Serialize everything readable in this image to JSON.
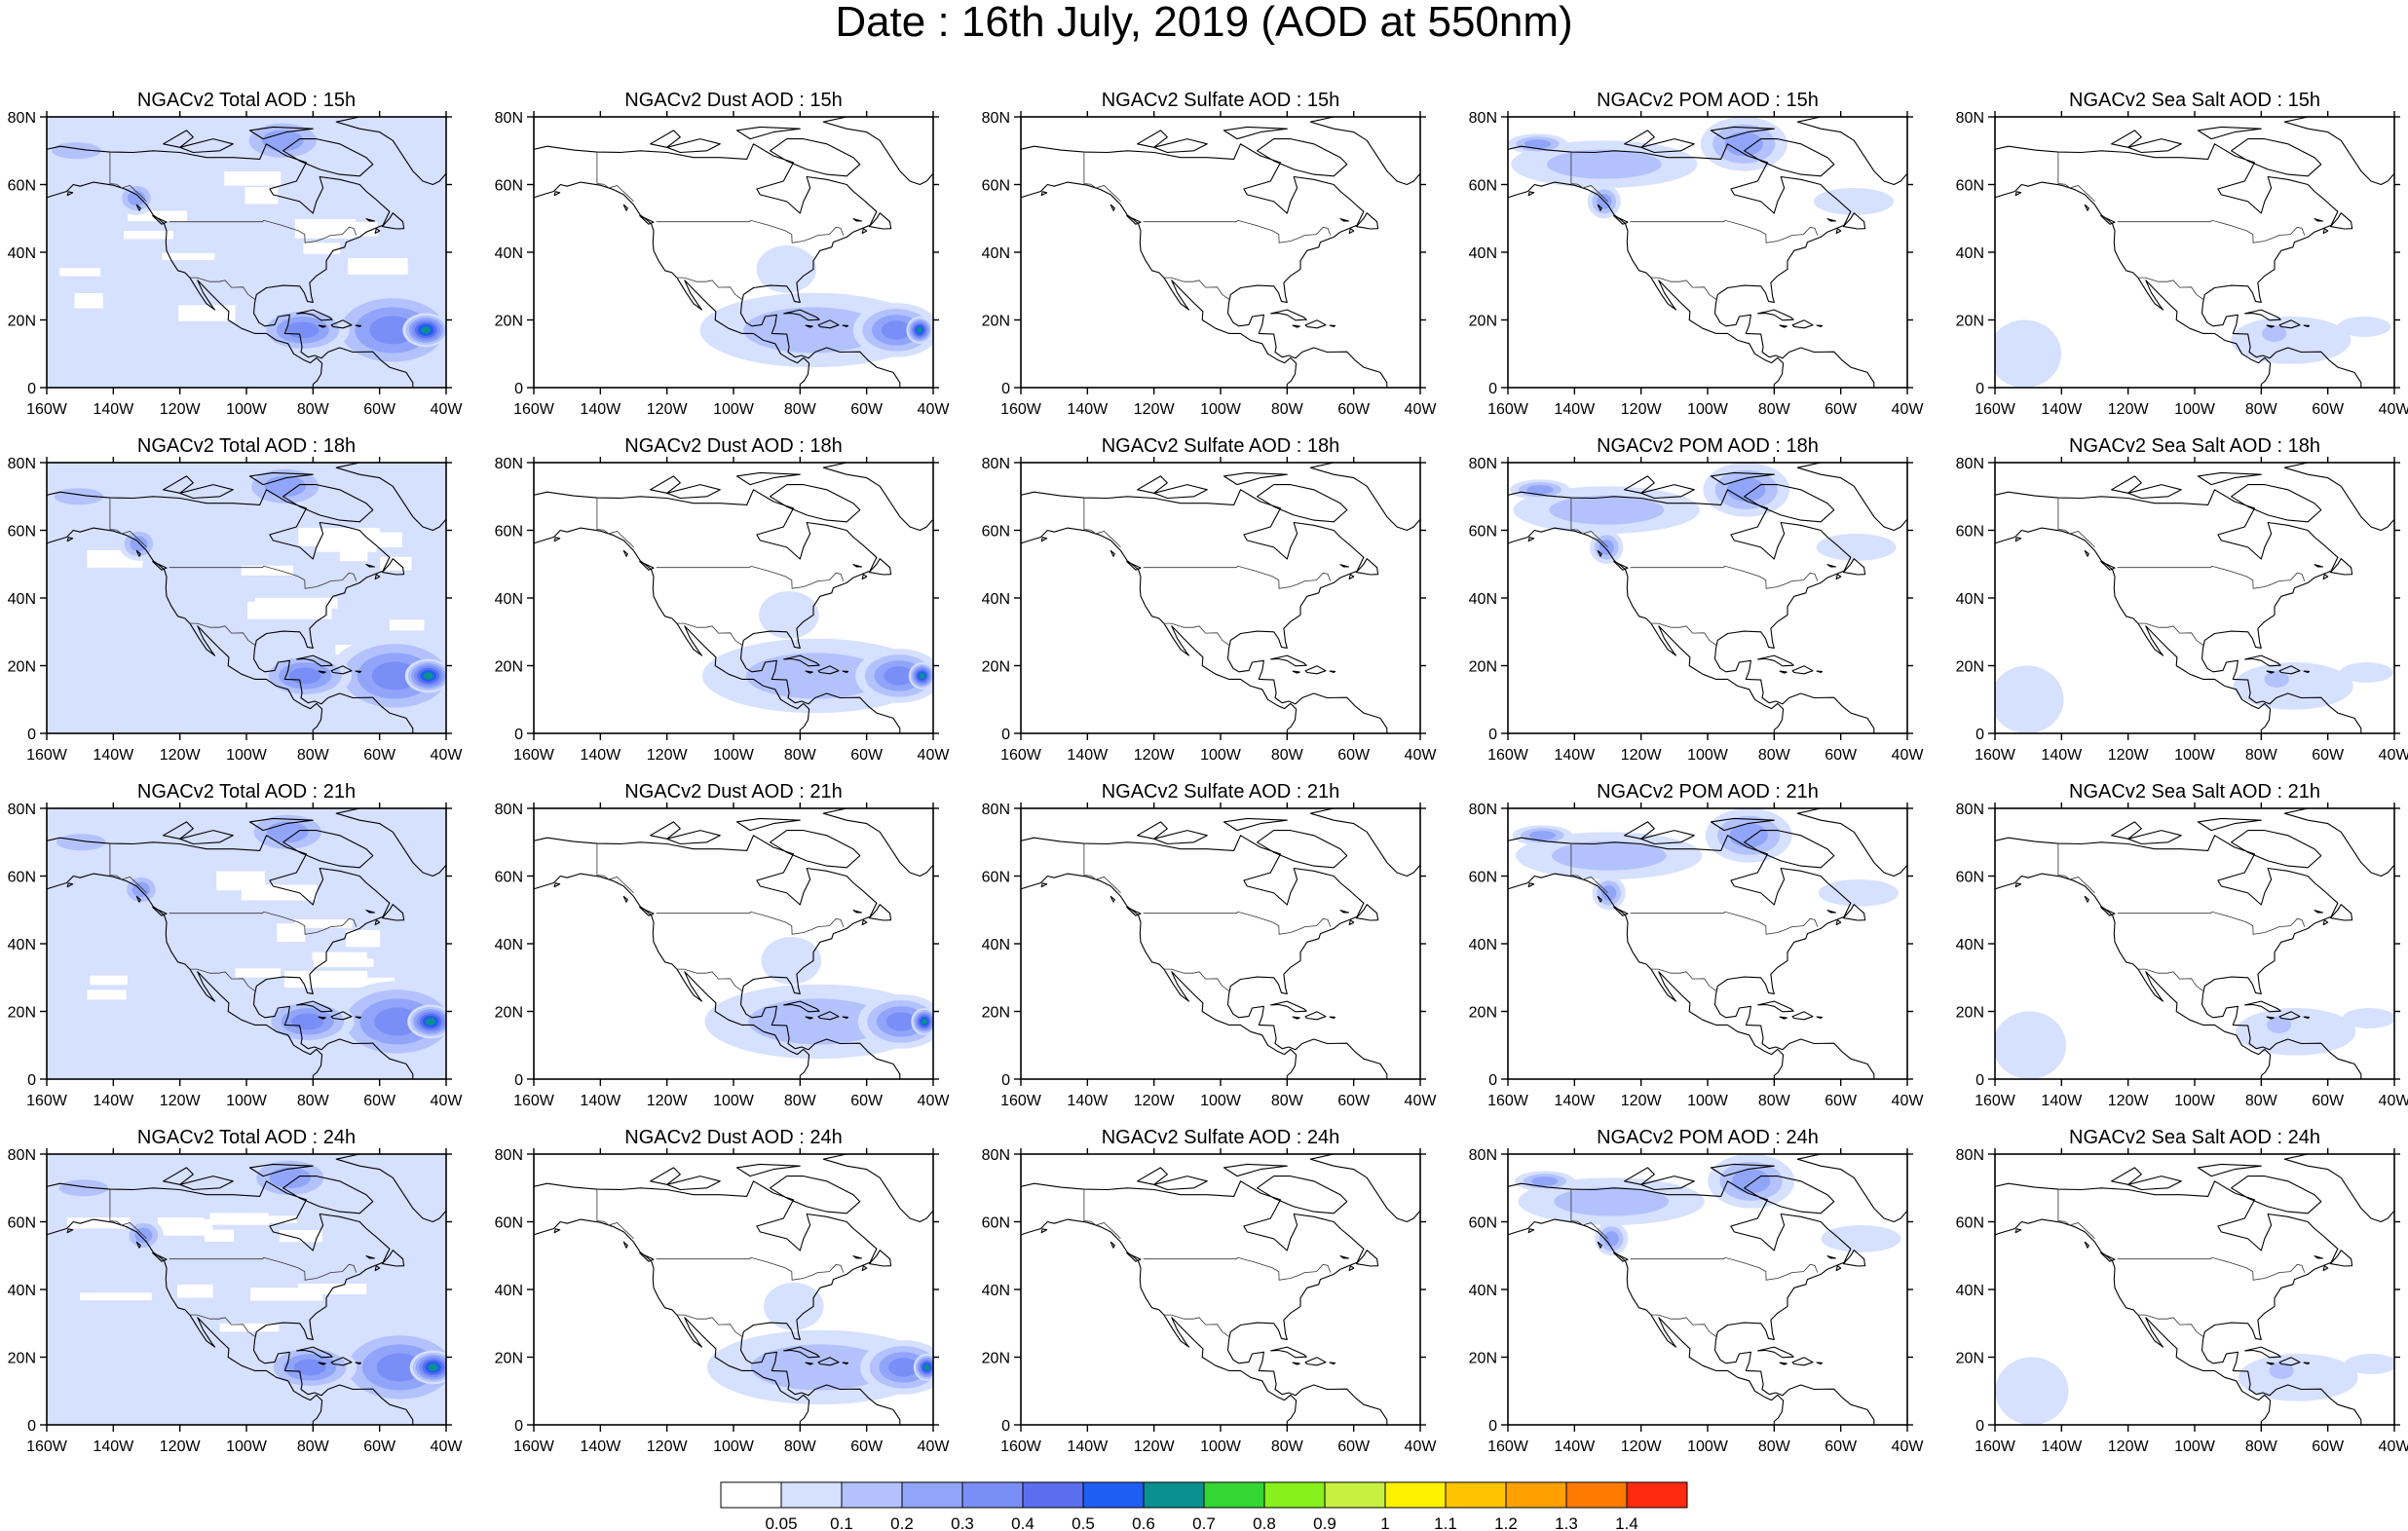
{
  "title": "Date : 16th July, 2019 (AOD at 550nm)",
  "rows": [
    [
      "NGACv2 Total AOD : 15h",
      "NGACv2 Dust AOD : 15h",
      "NGACv2 Sulfate AOD : 15h",
      "NGACv2 POM AOD : 15h",
      "NGACv2 Sea Salt AOD : 15h"
    ],
    [
      "NGACv2 Total AOD : 18h",
      "NGACv2 Dust AOD : 18h",
      "NGACv2 Sulfate AOD : 18h",
      "NGACv2 POM AOD : 18h",
      "NGACv2 Sea Salt AOD : 18h"
    ],
    [
      "NGACv2 Total AOD : 21h",
      "NGACv2 Dust AOD : 21h",
      "NGACv2 Sulfate AOD : 21h",
      "NGACv2 POM AOD : 21h",
      "NGACv2 Sea Salt AOD : 21h"
    ],
    [
      "NGACv2 Total AOD : 24h",
      "NGACv2 Dust AOD : 24h",
      "NGACv2 Sulfate AOD : 24h",
      "NGACv2 POM AOD : 24h",
      "NGACv2 Sea Salt  AOD : 24h"
    ]
  ],
  "map_extent": {
    "lon": [
      -160,
      -40
    ],
    "lat": [
      0,
      80
    ]
  },
  "lon_ticks": [
    {
      "value": -160,
      "label": "160W"
    },
    {
      "value": -140,
      "label": "140W"
    },
    {
      "value": -120,
      "label": "120W"
    },
    {
      "value": -100,
      "label": "100W"
    },
    {
      "value": -80,
      "label": "80W"
    },
    {
      "value": -60,
      "label": "60W"
    },
    {
      "value": -40,
      "label": "40W"
    }
  ],
  "lat_ticks": [
    {
      "value": 0,
      "label": "0"
    },
    {
      "value": 20,
      "label": "20N"
    },
    {
      "value": 40,
      "label": "40N"
    },
    {
      "value": 60,
      "label": "60N"
    },
    {
      "value": 80,
      "label": "80N"
    }
  ],
  "colorbar": {
    "colors": [
      "#ffffff",
      "#d6e0ff",
      "#b3c2fc",
      "#90a5fa",
      "#7a8ef8",
      "#5c6ef0",
      "#1f5ef2",
      "#0a9090",
      "#33d633",
      "#88f01a",
      "#c8f040",
      "#fff200",
      "#ffc400",
      "#ffa000",
      "#ff7a00",
      "#ff2a10"
    ],
    "labels": [
      "0.05",
      "0.1",
      "0.2",
      "0.3",
      "0.4",
      "0.5",
      "0.6",
      "0.7",
      "0.8",
      "0.9",
      "1",
      "1.1",
      "1.2",
      "1.3",
      "1.4"
    ]
  },
  "aod_patterns": [
    {
      "species": "Total",
      "background_level": 1,
      "blobs": [
        {
          "lon": -55,
          "lat": 17,
          "rlon": 20,
          "rlat": 12,
          "level": 4
        },
        {
          "lon": -45,
          "lat": 17,
          "rlon": 7,
          "rlat": 5,
          "level": 7
        },
        {
          "lon": -82,
          "lat": 17,
          "rlon": 14,
          "rlat": 7,
          "level": 4
        },
        {
          "lon": -88,
          "lat": 73,
          "rlon": 14,
          "rlat": 7,
          "level": 3
        },
        {
          "lon": -132,
          "lat": 56,
          "rlon": 6,
          "rlat": 5,
          "level": 3
        },
        {
          "lon": -150,
          "lat": 70,
          "rlon": 12,
          "rlat": 4,
          "level": 2
        }
      ]
    },
    {
      "species": "Dust",
      "background_level": 0,
      "blobs": [
        {
          "lon": -75,
          "lat": 17,
          "rlon": 34,
          "rlat": 11,
          "level": 2
        },
        {
          "lon": -50,
          "lat": 17,
          "rlon": 13,
          "rlat": 8,
          "level": 4
        },
        {
          "lon": -43,
          "lat": 17,
          "rlon": 4,
          "rlat": 4,
          "level": 7
        },
        {
          "lon": -83,
          "lat": 35,
          "rlon": 9,
          "rlat": 7,
          "level": 1
        }
      ]
    },
    {
      "species": "Sulfate",
      "background_level": 0,
      "blobs": []
    },
    {
      "species": "POM",
      "background_level": 0,
      "blobs": [
        {
          "lon": -130,
          "lat": 66,
          "rlon": 28,
          "rlat": 7,
          "level": 2
        },
        {
          "lon": -150,
          "lat": 72,
          "rlon": 9,
          "rlat": 3,
          "level": 3
        },
        {
          "lon": -88,
          "lat": 72,
          "rlon": 13,
          "rlat": 8,
          "level": 3
        },
        {
          "lon": -130,
          "lat": 55,
          "rlon": 5,
          "rlat": 5,
          "level": 3
        },
        {
          "lon": -55,
          "lat": 55,
          "rlon": 12,
          "rlat": 4,
          "level": 1
        }
      ]
    },
    {
      "species": "Sea Salt",
      "background_level": 0,
      "blobs": [
        {
          "lon": -150,
          "lat": 10,
          "rlon": 11,
          "rlat": 10,
          "level": 1
        },
        {
          "lon": -70,
          "lat": 14,
          "rlon": 18,
          "rlat": 7,
          "level": 1
        },
        {
          "lon": -75,
          "lat": 16,
          "rlon": 6,
          "rlat": 4,
          "level": 2
        },
        {
          "lon": -48,
          "lat": 18,
          "rlon": 8,
          "rlat": 3,
          "level": 1
        }
      ]
    }
  ]
}
